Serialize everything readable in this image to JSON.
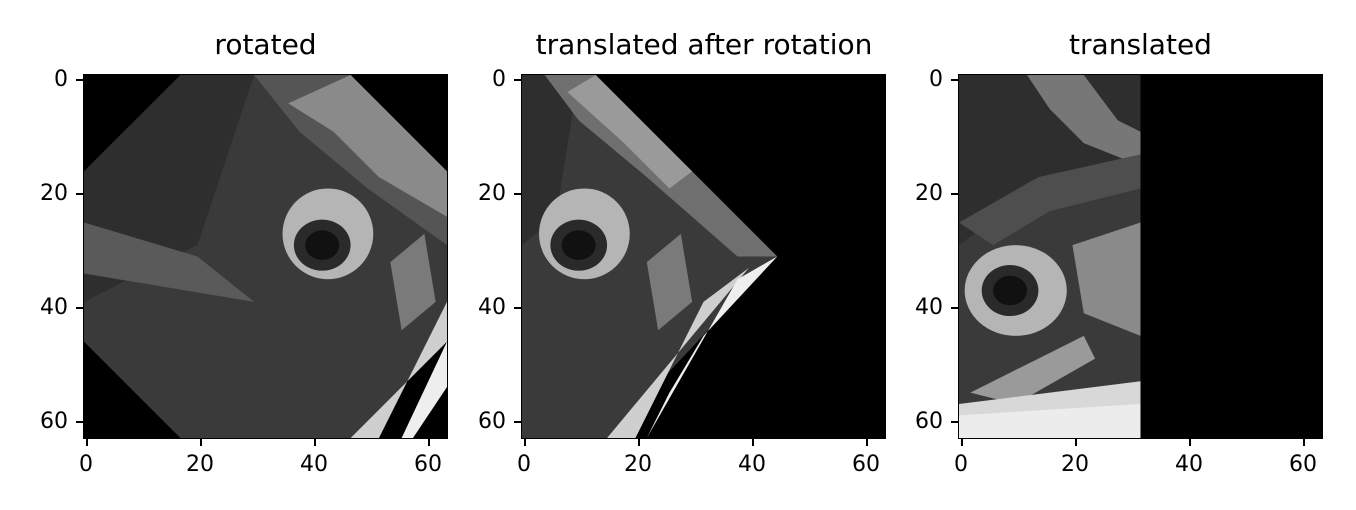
{
  "figure": {
    "panels": [
      {
        "title": "rotated",
        "xticks": [
          "0",
          "20",
          "40",
          "60"
        ],
        "yticks": [
          "0",
          "20",
          "40",
          "60"
        ]
      },
      {
        "title": "translated after rotation",
        "xticks": [
          "0",
          "20",
          "40",
          "60"
        ],
        "yticks": [
          "0",
          "20",
          "40",
          "60"
        ]
      },
      {
        "title": "translated",
        "xticks": [
          "0",
          "20",
          "40",
          "60"
        ],
        "yticks": [
          "0",
          "20",
          "40",
          "60"
        ]
      }
    ],
    "colors": {
      "background": "#000000",
      "foreground": "#ffffff"
    }
  }
}
